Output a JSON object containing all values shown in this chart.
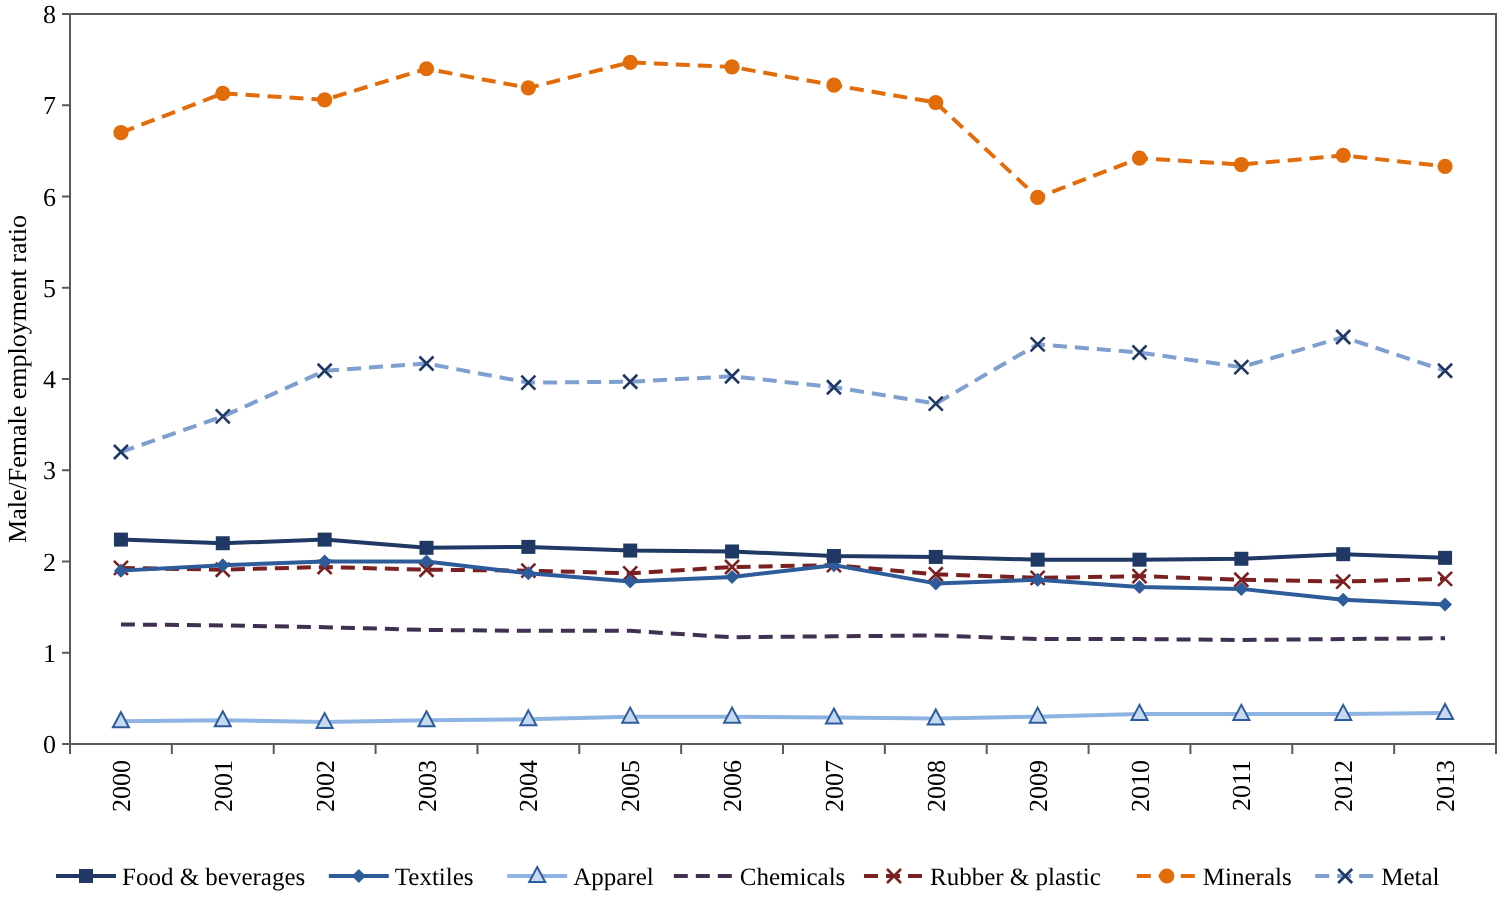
{
  "chart_data": {
    "type": "line",
    "ylabel": "Male/Female employment ratio",
    "categories": [
      "2000",
      "2001",
      "2002",
      "2003",
      "2004",
      "2005",
      "2006",
      "2007",
      "2008",
      "2009",
      "2010",
      "2011",
      "2012",
      "2013"
    ],
    "ylim": [
      0,
      8
    ],
    "yticks": [
      0,
      1,
      2,
      3,
      4,
      5,
      6,
      7,
      8
    ],
    "grid": false,
    "legend": "bottom",
    "series": [
      {
        "name": "Food & beverages",
        "color": "#1f3864",
        "marker": "square",
        "line_style": "solid",
        "values": [
          2.24,
          2.2,
          2.24,
          2.15,
          2.16,
          2.12,
          2.11,
          2.06,
          2.05,
          2.02,
          2.02,
          2.03,
          2.08,
          2.04
        ]
      },
      {
        "name": "Textiles",
        "color": "#2e5c9a",
        "marker": "diamond",
        "line_style": "solid",
        "values": [
          1.9,
          1.96,
          2.0,
          2.0,
          1.87,
          1.78,
          1.83,
          1.96,
          1.76,
          1.8,
          1.72,
          1.7,
          1.58,
          1.53
        ]
      },
      {
        "name": "Apparel",
        "color": "#8eb4e3",
        "marker": "triangle",
        "line_style": "solid",
        "values": [
          0.25,
          0.26,
          0.24,
          0.26,
          0.27,
          0.3,
          0.3,
          0.29,
          0.28,
          0.3,
          0.33,
          0.33,
          0.33,
          0.34
        ]
      },
      {
        "name": "Chemicals",
        "color": "#403152",
        "marker": "none",
        "line_style": "dashed",
        "values": [
          1.31,
          1.3,
          1.28,
          1.25,
          1.24,
          1.24,
          1.17,
          1.18,
          1.19,
          1.15,
          1.15,
          1.14,
          1.15,
          1.16
        ]
      },
      {
        "name": "Rubber & plastic",
        "color": "#7b2020",
        "marker": "cross",
        "line_style": "dashed",
        "values": [
          1.93,
          1.91,
          1.94,
          1.91,
          1.9,
          1.87,
          1.94,
          1.96,
          1.86,
          1.82,
          1.84,
          1.8,
          1.78,
          1.81
        ]
      },
      {
        "name": "Minerals",
        "color": "#e36c0a",
        "marker": "circle",
        "line_style": "dashed",
        "values": [
          6.7,
          7.13,
          7.06,
          7.4,
          7.19,
          7.47,
          7.42,
          7.22,
          7.03,
          5.99,
          6.42,
          6.35,
          6.45,
          6.33
        ]
      },
      {
        "name": "Metal",
        "color": "#7f9fd0",
        "marker": "cross",
        "line_style": "dashed",
        "values": [
          3.2,
          3.59,
          4.09,
          4.17,
          3.96,
          3.97,
          4.03,
          3.91,
          3.73,
          4.38,
          4.29,
          4.13,
          4.46,
          4.09
        ]
      }
    ]
  }
}
